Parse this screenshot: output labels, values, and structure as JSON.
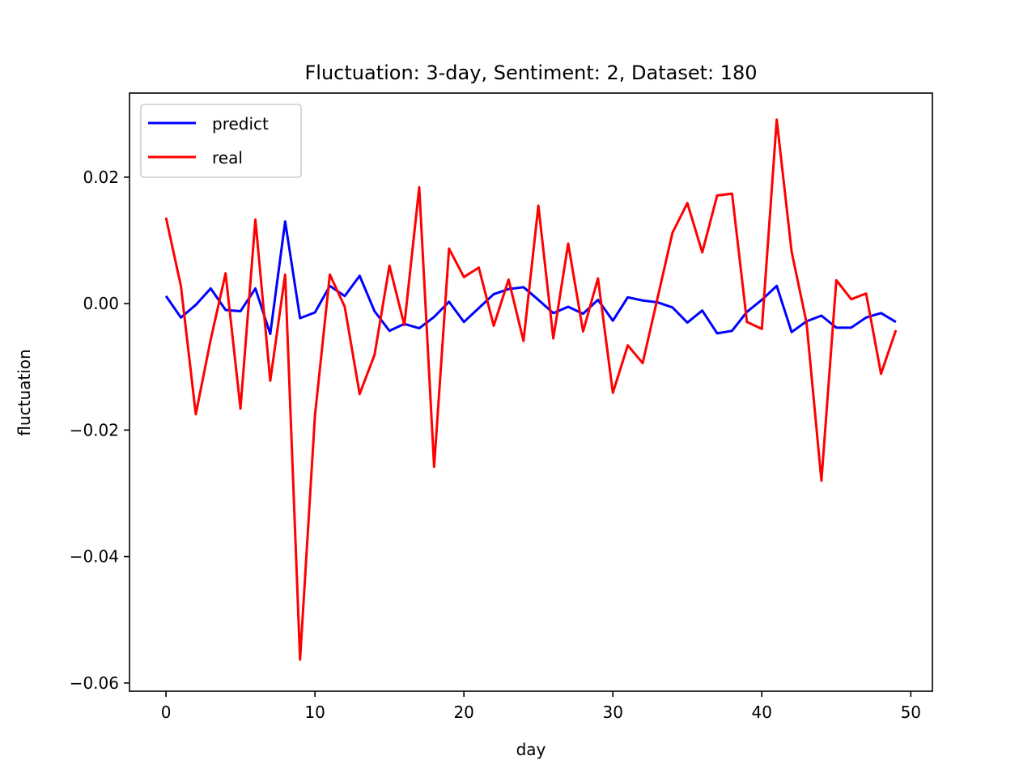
{
  "chart_data": {
    "type": "line",
    "title": "Fluctuation: 3-day, Sentiment: 2, Dataset: 180",
    "xlabel": "day",
    "ylabel": "fluctuation",
    "xlim": [
      -2.45,
      51.45
    ],
    "ylim": [
      -0.0613,
      0.0333
    ],
    "x_ticks": [
      0,
      10,
      20,
      30,
      40,
      50
    ],
    "x_tick_labels": [
      "0",
      "10",
      "20",
      "30",
      "40",
      "50"
    ],
    "y_ticks": [
      -0.06,
      -0.04,
      -0.02,
      0.0,
      0.02
    ],
    "y_tick_labels": [
      "−0.06",
      "−0.04",
      "−0.02",
      "0.00",
      "0.02"
    ],
    "grid": false,
    "legend_position": "upper-left",
    "x": [
      0,
      1,
      2,
      3,
      4,
      5,
      6,
      7,
      8,
      9,
      10,
      11,
      12,
      13,
      14,
      15,
      16,
      17,
      18,
      19,
      20,
      21,
      22,
      23,
      24,
      25,
      26,
      27,
      28,
      29,
      30,
      31,
      32,
      33,
      34,
      35,
      36,
      37,
      38,
      39,
      40,
      41,
      42,
      43,
      44,
      45,
      46,
      47,
      48,
      49
    ],
    "series": [
      {
        "name": "predict",
        "color": "#0000ff",
        "values": [
          0.0012,
          -0.0022,
          -0.0002,
          0.0024,
          -0.001,
          -0.0012,
          0.0024,
          -0.0048,
          0.013,
          -0.0023,
          -0.0014,
          0.0028,
          0.0012,
          0.0044,
          -0.0012,
          -0.0043,
          -0.0032,
          -0.0039,
          -0.0021,
          0.0003,
          -0.0029,
          -0.0007,
          0.0015,
          0.0023,
          0.0026,
          0.0006,
          -0.0015,
          -0.0005,
          -0.0016,
          0.0006,
          -0.0027,
          0.001,
          0.0005,
          0.0002,
          -0.0006,
          -0.003,
          -0.0011,
          -0.0047,
          -0.0043,
          -0.0013,
          0.0006,
          0.0028,
          -0.0045,
          -0.0028,
          -0.0019,
          -0.0038,
          -0.0038,
          -0.0022,
          -0.0015,
          -0.0029
        ]
      },
      {
        "name": "real",
        "color": "#ff0000",
        "values": [
          0.0136,
          0.0028,
          -0.0175,
          -0.0057,
          0.0048,
          -0.0166,
          0.0133,
          -0.0122,
          0.0046,
          -0.0563,
          -0.0177,
          0.0046,
          -0.0005,
          -0.0143,
          -0.0081,
          0.006,
          -0.0034,
          0.0184,
          -0.0258,
          0.0087,
          0.0042,
          0.0057,
          -0.0035,
          0.0038,
          -0.0059,
          0.0155,
          -0.0055,
          0.0095,
          -0.0044,
          0.004,
          -0.0141,
          -0.0066,
          -0.0094,
          0.0009,
          0.0112,
          0.0159,
          0.0081,
          0.0171,
          0.0174,
          -0.0029,
          -0.004,
          0.0291,
          0.0082,
          -0.003,
          -0.028,
          0.0037,
          0.0007,
          0.0016,
          -0.0111,
          -0.0042
        ]
      }
    ]
  }
}
